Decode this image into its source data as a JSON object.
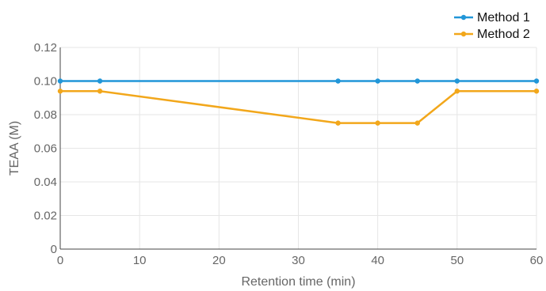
{
  "chart_data": {
    "type": "line",
    "title": "",
    "xlabel": "Retention time (min)",
    "ylabel": "TEAA (M)",
    "xlim": [
      0,
      60
    ],
    "ylim": [
      0,
      0.12
    ],
    "x_ticks": [
      0,
      10,
      20,
      30,
      40,
      50,
      60
    ],
    "x_tick_labels": [
      "0",
      "10",
      "20",
      "30",
      "40",
      "50",
      "60"
    ],
    "y_ticks": [
      0,
      0.02,
      0.04,
      0.06,
      0.08,
      0.1,
      0.12
    ],
    "y_tick_labels": [
      "0",
      "0.02",
      "0.04",
      "0.06",
      "0.08",
      "0.10",
      "0.12"
    ],
    "grid": true,
    "legend_position": "top-right",
    "series": [
      {
        "name": "Method 1",
        "color": "#2196d8",
        "points": [
          [
            0,
            0.1
          ],
          [
            5,
            0.1
          ],
          [
            35,
            0.1
          ],
          [
            40,
            0.1
          ],
          [
            45,
            0.1
          ],
          [
            50,
            0.1
          ],
          [
            60,
            0.1
          ]
        ]
      },
      {
        "name": "Method 2",
        "color": "#f2a71b",
        "points": [
          [
            0,
            0.094
          ],
          [
            5,
            0.094
          ],
          [
            35,
            0.075
          ],
          [
            40,
            0.075
          ],
          [
            45,
            0.075
          ],
          [
            50,
            0.094
          ],
          [
            60,
            0.094
          ]
        ]
      }
    ]
  }
}
